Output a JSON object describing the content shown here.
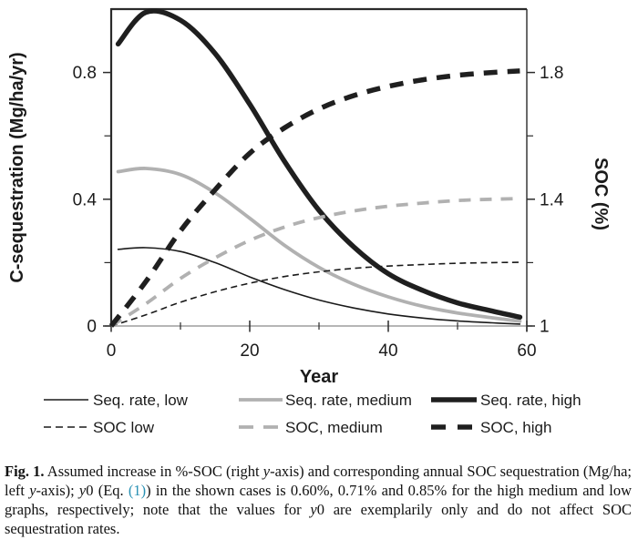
{
  "figure_label": "Fig. 1.",
  "colors": {
    "series_black": "#1f1f1f",
    "series_thin_black": "#1a1a1a",
    "series_gray": "#b1b1b1",
    "axis_black": "#2b2b2b",
    "axis_bottom_gray": "#9d9d9d",
    "text": "#1b1b1b",
    "citation_link": "#2991b4"
  },
  "chart_data": {
    "type": "line",
    "title": "",
    "xlabel": "Year",
    "ylabel_left": "C-sequestration (Mg/ha/yr)",
    "ylabel_right": "SOC (%)",
    "xlim": [
      0,
      60
    ],
    "ylim_left": [
      0,
      1.0
    ],
    "ylim_right": [
      1,
      2.0
    ],
    "grid": false,
    "legend_position": "below",
    "x_ticks": [
      0,
      20,
      40,
      60
    ],
    "x_tick_labels": [
      "0",
      "20",
      "40",
      "60"
    ],
    "x_minor_ticks": [
      10,
      30,
      50
    ],
    "y_left_ticks": [
      0,
      0.4,
      0.8
    ],
    "y_left_tick_labels": [
      "0",
      "0.4",
      "0.8"
    ],
    "y_left_minor_ticks": [
      0.2,
      0.6
    ],
    "y_right_ticks": [
      1,
      1.4,
      1.8
    ],
    "y_right_tick_labels": [
      "1",
      "1.4",
      "1.8"
    ],
    "y_right_minor_ticks": [
      1.2,
      1.6
    ],
    "years": [
      0,
      5,
      10,
      15,
      20,
      25,
      30,
      35,
      40,
      45,
      50,
      55,
      60
    ],
    "series": [
      {
        "name": "Seq. rate, low",
        "axis": "left",
        "style": "solid",
        "color": "#1a1a1a",
        "width": 1.6,
        "t_start": 1,
        "t_end": 59,
        "values": [
          0.242,
          0.247,
          0.235,
          0.2,
          0.155,
          0.115,
          0.082,
          0.057,
          0.038,
          0.025,
          0.016,
          0.01,
          0.006
        ]
      },
      {
        "name": "Seq. rate, medium",
        "axis": "left",
        "style": "solid",
        "color": "#b1b1b1",
        "width": 3.8,
        "t_start": 1,
        "t_end": 59,
        "values": [
          0.487,
          0.497,
          0.478,
          0.42,
          0.34,
          0.255,
          0.185,
          0.132,
          0.092,
          0.062,
          0.041,
          0.026,
          0.015
        ]
      },
      {
        "name": "Seq. rate, high",
        "axis": "left",
        "style": "solid",
        "color": "#1f1f1f",
        "width": 5.5,
        "t_start": 1,
        "t_end": 59,
        "values": [
          0.89,
          0.99,
          0.965,
          0.86,
          0.7,
          0.52,
          0.365,
          0.25,
          0.165,
          0.112,
          0.073,
          0.047,
          0.028
        ]
      },
      {
        "name": "SOC low",
        "axis": "right",
        "style": "dashed",
        "color": "#1a1a1a",
        "width": 1.6,
        "dash": "7,4.5",
        "legend_dash": "8,5",
        "t_start": 0,
        "t_end": 59,
        "values": [
          1.0,
          1.035,
          1.075,
          1.108,
          1.135,
          1.156,
          1.171,
          1.182,
          1.189,
          1.194,
          1.198,
          1.2,
          1.201
        ]
      },
      {
        "name": "SOC, medium",
        "axis": "right",
        "style": "dashed",
        "color": "#b1b1b1",
        "width": 3.8,
        "dash": "13,10",
        "legend_dash": "16,11",
        "t_start": 0,
        "t_end": 59,
        "values": [
          1.0,
          1.07,
          1.15,
          1.215,
          1.27,
          1.312,
          1.342,
          1.363,
          1.378,
          1.388,
          1.396,
          1.4,
          1.402
        ]
      },
      {
        "name": "SOC, high",
        "axis": "right",
        "style": "dashed",
        "color": "#1f1f1f",
        "width": 5.5,
        "dash": "15,11",
        "legend_dash": "16,13",
        "t_start": 0,
        "t_end": 59,
        "values": [
          1.0,
          1.14,
          1.3,
          1.43,
          1.545,
          1.625,
          1.685,
          1.727,
          1.756,
          1.777,
          1.791,
          1.8,
          1.805
        ]
      }
    ]
  },
  "legend": {
    "row1": [
      "Seq. rate, low",
      "Seq. rate, medium",
      "Seq. rate, high"
    ],
    "row2": [
      "SOC low",
      "SOC, medium",
      "SOC, high"
    ]
  },
  "caption": {
    "segments": [
      {
        "t": "Fig. 1.",
        "b": 1
      },
      {
        "t": " Assumed increase in %-SOC (right "
      },
      {
        "t": "y",
        "i": 1
      },
      {
        "t": "-axis) and corresponding annual SOC sequestration (Mg/ha; left "
      },
      {
        "t": "y",
        "i": 1
      },
      {
        "t": "-axis); "
      },
      {
        "t": "y",
        "i": 1
      },
      {
        "t": "0 (Eq. "
      },
      {
        "t": "(1)",
        "link": 1
      },
      {
        "t": ") in the shown cases is 0.60%, 0.71% and 0.85% for the high medium and low graphs, respectively; note that the values for "
      },
      {
        "t": "y",
        "i": 1
      },
      {
        "t": "0 are exemplarily only and do not affect SOC sequestration rates."
      }
    ]
  }
}
